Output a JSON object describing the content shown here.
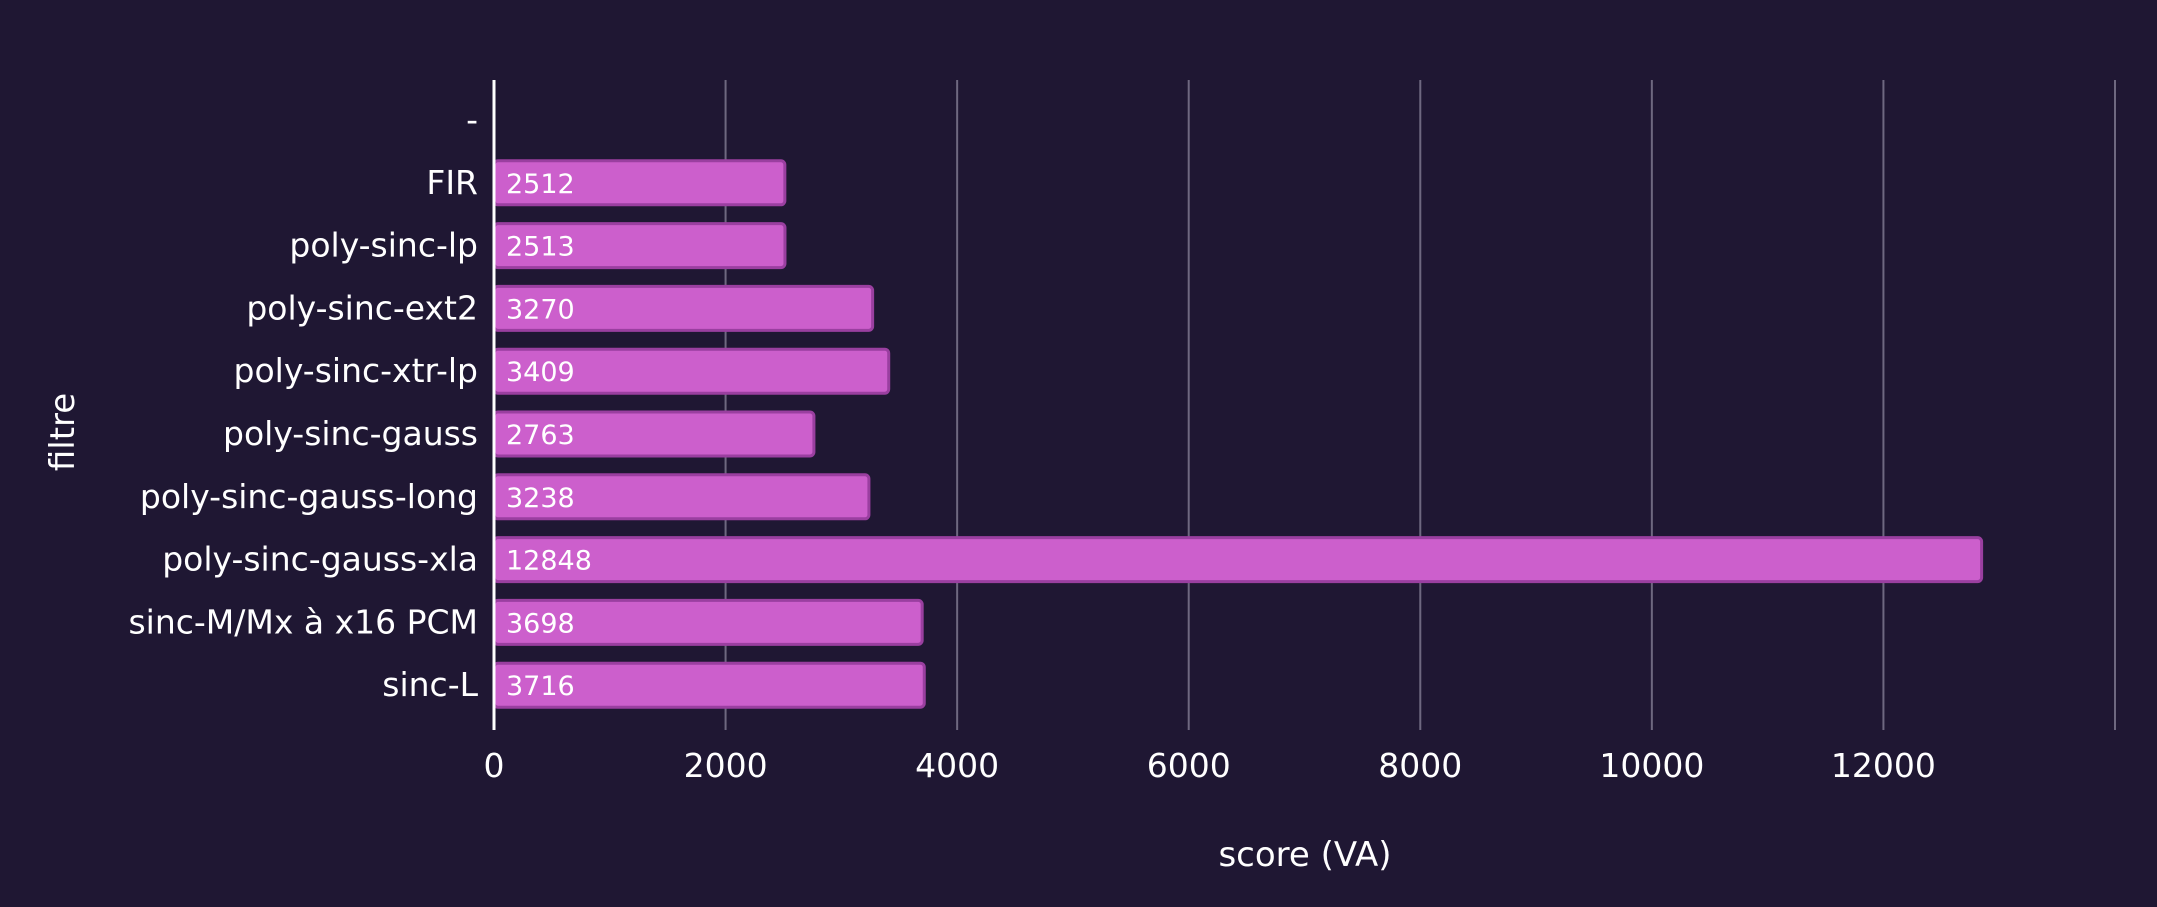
{
  "chart_data": {
    "type": "bar",
    "orientation": "horizontal",
    "xlabel": "score (VA)",
    "ylabel": "filtre",
    "categories": [
      "-",
      "FIR",
      "poly-sinc-lp",
      "poly-sinc-ext2",
      "poly-sinc-xtr-lp",
      "poly-sinc-gauss",
      "poly-sinc-gauss-long",
      "poly-sinc-gauss-xla",
      "sinc-M/Mx à x16 PCM",
      "sinc-L"
    ],
    "values": [
      null,
      2512,
      2513,
      3270,
      3409,
      2763,
      3238,
      12848,
      3698,
      3716
    ],
    "value_labels": [
      "",
      "2512",
      "2513",
      "3270",
      "3409",
      "2763",
      "3238",
      "12848",
      "3698",
      "3716"
    ],
    "xlim": [
      0,
      14000
    ],
    "xticks": [
      0,
      2000,
      4000,
      6000,
      8000,
      10000,
      12000
    ],
    "xtick_labels": [
      "0",
      "2000",
      "4000",
      "6000",
      "8000",
      "10000",
      "12000"
    ],
    "gridlines": [
      2000,
      4000,
      6000,
      8000,
      10000,
      12000,
      14000
    ],
    "grid": "vertical",
    "bar_color": "#cc5fcc",
    "bar_edge_color": "#9a3fa0",
    "background_color": "#1f1733",
    "text_color": "#ffffff",
    "grid_color": "#6e6880"
  }
}
